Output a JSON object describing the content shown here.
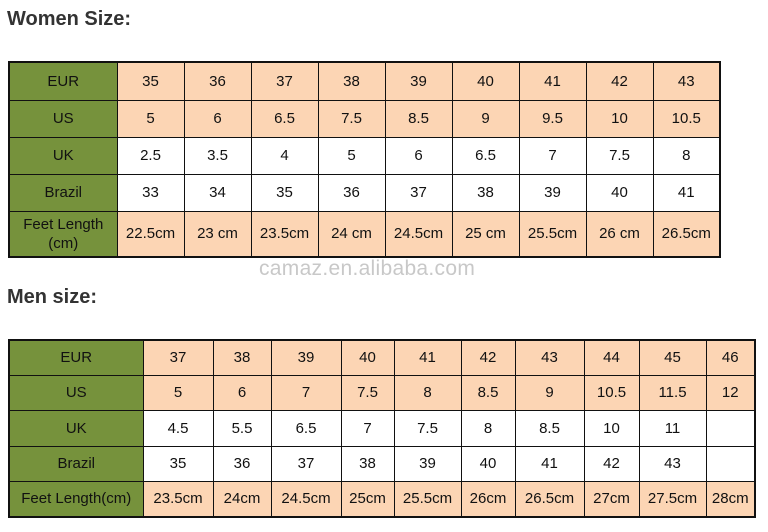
{
  "colors": {
    "header_green": "#76923c",
    "peach": "#fcd5b4",
    "white": "#ffffff"
  },
  "women": {
    "title": "Women Size:",
    "rows": [
      {
        "label": "EUR",
        "shade": "peach",
        "values": [
          "35",
          "36",
          "37",
          "38",
          "39",
          "40",
          "41",
          "42",
          "43"
        ]
      },
      {
        "label": "US",
        "shade": "peach",
        "values": [
          "5",
          "6",
          "6.5",
          "7.5",
          "8.5",
          "9",
          "9.5",
          "10",
          "10.5"
        ]
      },
      {
        "label": "UK",
        "shade": "white",
        "values": [
          "2.5",
          "3.5",
          "4",
          "5",
          "6",
          "6.5",
          "7",
          "7.5",
          "8"
        ]
      },
      {
        "label": "Brazil",
        "shade": "white",
        "values": [
          "33",
          "34",
          "35",
          "36",
          "37",
          "38",
          "39",
          "40",
          "41"
        ]
      },
      {
        "label": "Feet Length (cm)",
        "shade": "peach",
        "values": [
          "22.5cm",
          "23 cm",
          "23.5cm",
          "24 cm",
          "24.5cm",
          "25 cm",
          "25.5cm",
          "26 cm",
          "26.5cm"
        ]
      }
    ]
  },
  "watermark": "camaz.en.alibaba.com",
  "men": {
    "title": "Men size:",
    "rows": [
      {
        "label": "EUR",
        "shade": "peach",
        "values": [
          "37",
          "38",
          "39",
          "40",
          "41",
          "42",
          "43",
          "44",
          "45",
          "46"
        ]
      },
      {
        "label": "US",
        "shade": "peach",
        "values": [
          "5",
          "6",
          "7",
          "7.5",
          "8",
          "8.5",
          "9",
          "10.5",
          "11.5",
          "12"
        ]
      },
      {
        "label": "UK",
        "shade": "white",
        "values": [
          "4.5",
          "5.5",
          "6.5",
          "7",
          "7.5",
          "8",
          "8.5",
          "10",
          "11",
          ""
        ]
      },
      {
        "label": "Brazil",
        "shade": "white",
        "values": [
          "35",
          "36",
          "37",
          "38",
          "39",
          "40",
          "41",
          "42",
          "43",
          ""
        ]
      },
      {
        "label": "Feet Length(cm)",
        "shade": "peach",
        "values": [
          "23.5cm",
          "24cm",
          "24.5cm",
          "25cm",
          "25.5cm",
          "26cm",
          "26.5cm",
          "27cm",
          "27.5cm",
          "28cm"
        ]
      }
    ]
  }
}
